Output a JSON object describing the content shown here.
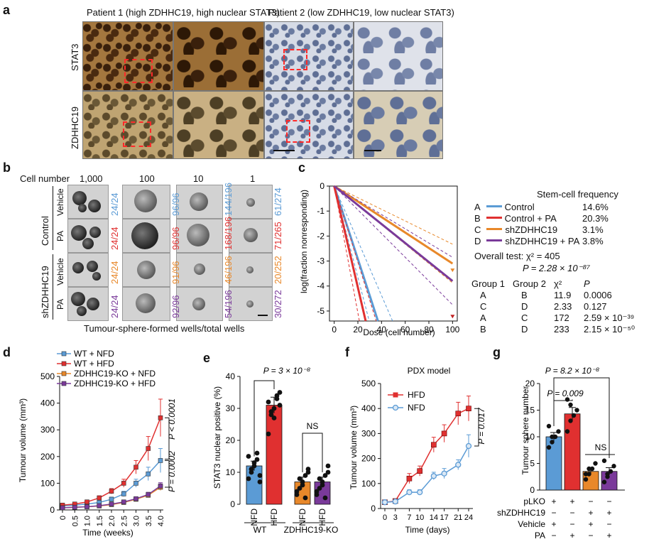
{
  "panel_labels": {
    "a": "a",
    "b": "b",
    "c": "c",
    "d": "d",
    "e": "e",
    "f": "f",
    "g": "g"
  },
  "panel_a": {
    "patient1": "Patient 1 (high ZDHHC19, high nuclear STAT3)",
    "patient2": "Patient 2 (low ZDHHC19, low nuclear STAT3)",
    "row1": "STAT3",
    "row2": "ZDHHC19"
  },
  "panel_b": {
    "cell_number_label": "Cell number",
    "doses": [
      "1,000",
      "100",
      "10",
      "1"
    ],
    "group_control": "Control",
    "group_sh": "shZDHHC19",
    "treat_vehicle": "Vehicle",
    "treat_pa": "PA",
    "counts": [
      [
        "24/24",
        "96/96",
        "144/196",
        "61/274"
      ],
      [
        "24/24",
        "96/96",
        "168/196",
        "71/265"
      ],
      [
        "24/24",
        "91/96",
        "46/196",
        "20/252"
      ],
      [
        "24/24",
        "92/96",
        "54/196",
        "30/272"
      ]
    ],
    "count_colors": [
      "#5b9bd5",
      "#e03030",
      "#e8882a",
      "#7a3a9a"
    ],
    "caption": "Tumour-sphere-formed wells/total wells"
  },
  "panel_c": {
    "chart_data": {
      "type": "line",
      "xlabel": "Dose (cell number)",
      "ylabel": "log(fraction nonresponding)",
      "xlim": [
        0,
        100
      ],
      "ylim": [
        -5.2,
        0
      ],
      "xticks": [
        "0",
        "20",
        "40",
        "60",
        "80",
        "100"
      ],
      "yticks": [
        "0",
        "-1",
        "-2",
        "-3",
        "-4",
        "-5"
      ],
      "series": [
        {
          "name": "Control",
          "color": "#5b9bd5",
          "slope": -0.146
        },
        {
          "name": "Control + PA",
          "color": "#e03030",
          "slope": -0.203
        },
        {
          "name": "shZDHHC19",
          "color": "#e8882a",
          "slope": -0.031
        },
        {
          "name": "shZDHHC19 + PA",
          "color": "#7a3a9a",
          "slope": -0.038
        }
      ]
    },
    "legend_title": "Stem-cell frequency",
    "legend": [
      {
        "letter": "A",
        "name": "Control",
        "freq": "14.6%",
        "color": "#5b9bd5"
      },
      {
        "letter": "B",
        "name": "Control + PA",
        "freq": "20.3%",
        "color": "#e03030"
      },
      {
        "letter": "C",
        "name": "shZDHHC19",
        "freq": "3.1%",
        "color": "#e8882a"
      },
      {
        "letter": "D",
        "name": "shZDHHC19 + PA",
        "freq": "3.8%",
        "color": "#7a3a9a"
      }
    ],
    "overall": "Overall test: χ² = 405",
    "overall_p": "P = 2.28 × 10⁻⁸⁷",
    "table_header": [
      "Group 1",
      "Group 2",
      "χ²",
      "P"
    ],
    "table_rows": [
      [
        "A",
        "B",
        "11.9",
        "0.0006"
      ],
      [
        "C",
        "D",
        "2.33",
        "0.127"
      ],
      [
        "A",
        "C",
        "172",
        "2.59 × 10⁻³⁹"
      ],
      [
        "B",
        "D",
        "233",
        "2.15 × 10⁻⁵⁰"
      ]
    ]
  },
  "panel_d": {
    "chart_data": {
      "type": "line",
      "xlabel": "Time (weeks)",
      "ylabel": "Tumour volume (mm³)",
      "x": [
        0,
        0.5,
        1.0,
        1.5,
        2.0,
        2.5,
        3.0,
        3.5,
        4.0
      ],
      "xticks": [
        "0",
        "0.5",
        "1.0",
        "1.5",
        "2.0",
        "2.5",
        "3.0",
        "3.5",
        "4.0"
      ],
      "ylim": [
        0,
        500
      ],
      "yticks": [
        "0",
        "100",
        "200",
        "300",
        "400",
        "500"
      ],
      "series": [
        {
          "name": "WT + NFD",
          "color": "#5b9bd5",
          "values": [
            15,
            18,
            22,
            28,
            40,
            60,
            100,
            135,
            185
          ],
          "err": [
            3,
            3,
            4,
            5,
            8,
            10,
            15,
            25,
            45
          ]
        },
        {
          "name": "WT + HFD",
          "color": "#e03030",
          "values": [
            18,
            22,
            30,
            45,
            70,
            100,
            160,
            230,
            345
          ],
          "err": [
            3,
            4,
            5,
            8,
            10,
            15,
            25,
            45,
            70
          ]
        },
        {
          "name": "ZDHHC19-KO + NFD",
          "color": "#e8882a",
          "values": [
            8,
            10,
            12,
            15,
            20,
            28,
            40,
            55,
            85
          ],
          "err": [
            2,
            2,
            2,
            3,
            4,
            5,
            6,
            8,
            12
          ]
        },
        {
          "name": "ZDHHC19-KO + HFD",
          "color": "#7a3a9a",
          "values": [
            8,
            10,
            12,
            16,
            22,
            30,
            42,
            58,
            90
          ],
          "err": [
            2,
            2,
            2,
            3,
            4,
            5,
            6,
            8,
            12
          ]
        }
      ]
    },
    "p1": "P < 0.0001",
    "p2": "P = 0.0002"
  },
  "panel_e": {
    "chart_data": {
      "type": "bar",
      "ylabel": "STAT3 nuclear positive (%)",
      "ylim": [
        0,
        40
      ],
      "yticks": [
        "0",
        "10",
        "20",
        "30",
        "40"
      ],
      "categories": [
        "NFD",
        "HFD",
        "NFD",
        "HFD"
      ],
      "values": [
        12,
        31,
        7,
        7
      ],
      "err": [
        1.5,
        2.5,
        1.5,
        1.5
      ],
      "colors": [
        "#5b9bd5",
        "#e03030",
        "#e8882a",
        "#7a3a9a"
      ],
      "points": [
        [
          8,
          10,
          12,
          14,
          9,
          15,
          11,
          13,
          16,
          7
        ],
        [
          22,
          28,
          30,
          33,
          35,
          32,
          29,
          27,
          34,
          31
        ],
        [
          3,
          5,
          7,
          9,
          11,
          4,
          8,
          6,
          2,
          10
        ],
        [
          3,
          5,
          7,
          9,
          12,
          4,
          8,
          6,
          2,
          10
        ]
      ]
    },
    "p_top": "P = 3 × 10⁻⁸",
    "ns": "NS",
    "group_wt": "WT",
    "group_ko": "ZDHHC19-KO"
  },
  "panel_f": {
    "chart_data": {
      "type": "line",
      "title": "PDX model",
      "xlabel": "Time (days)",
      "ylabel": "Tumour volume (mm³)",
      "x": [
        0,
        3,
        7,
        10,
        14,
        17,
        21,
        24
      ],
      "xticks": [
        "0",
        "3",
        "7",
        "10",
        "14",
        "17",
        "21",
        "24"
      ],
      "ylim": [
        0,
        500
      ],
      "yticks": [
        "0",
        "100",
        "200",
        "300",
        "400",
        "500"
      ],
      "series": [
        {
          "name": "HFD",
          "color": "#e03030",
          "values": [
            25,
            30,
            120,
            150,
            255,
            300,
            380,
            400
          ],
          "err": [
            5,
            5,
            20,
            20,
            30,
            35,
            45,
            50
          ]
        },
        {
          "name": "NFD",
          "color": "#5b9bd5",
          "values": [
            25,
            28,
            65,
            65,
            130,
            140,
            175,
            250
          ],
          "err": [
            5,
            5,
            10,
            10,
            15,
            20,
            20,
            45
          ]
        }
      ]
    },
    "p": "P = 0.017"
  },
  "panel_g": {
    "chart_data": {
      "type": "bar",
      "ylabel": "Tumour sphere number",
      "ylim": [
        0,
        20
      ],
      "yticks": [
        "0",
        "5",
        "10",
        "15",
        "20"
      ],
      "values": [
        10,
        14.3,
        3.5,
        3.5
      ],
      "err": [
        0.8,
        1.2,
        0.6,
        0.7
      ],
      "colors": [
        "#5b9bd5",
        "#e03030",
        "#e8882a",
        "#7a3a9a"
      ],
      "points": [
        [
          8,
          9,
          10,
          11,
          12,
          10
        ],
        [
          11,
          13,
          14,
          15,
          17,
          16
        ],
        [
          2,
          3,
          4,
          5,
          3,
          4
        ],
        [
          1.5,
          2.5,
          3.5,
          4.5,
          5.5,
          3
        ]
      ]
    },
    "p1": "P = 8.2 × 10⁻⁸",
    "p2": "P = 0.009",
    "ns": "NS",
    "rows": [
      {
        "label": "pLKO",
        "signs": [
          "+",
          "+",
          "−",
          "−"
        ]
      },
      {
        "label": "shZDHHC19",
        "signs": [
          "−",
          "−",
          "+",
          "+"
        ]
      },
      {
        "label": "Vehicle",
        "signs": [
          "+",
          "−",
          "+",
          "−"
        ]
      },
      {
        "label": "PA",
        "signs": [
          "−",
          "+",
          "−",
          "+"
        ]
      }
    ]
  }
}
